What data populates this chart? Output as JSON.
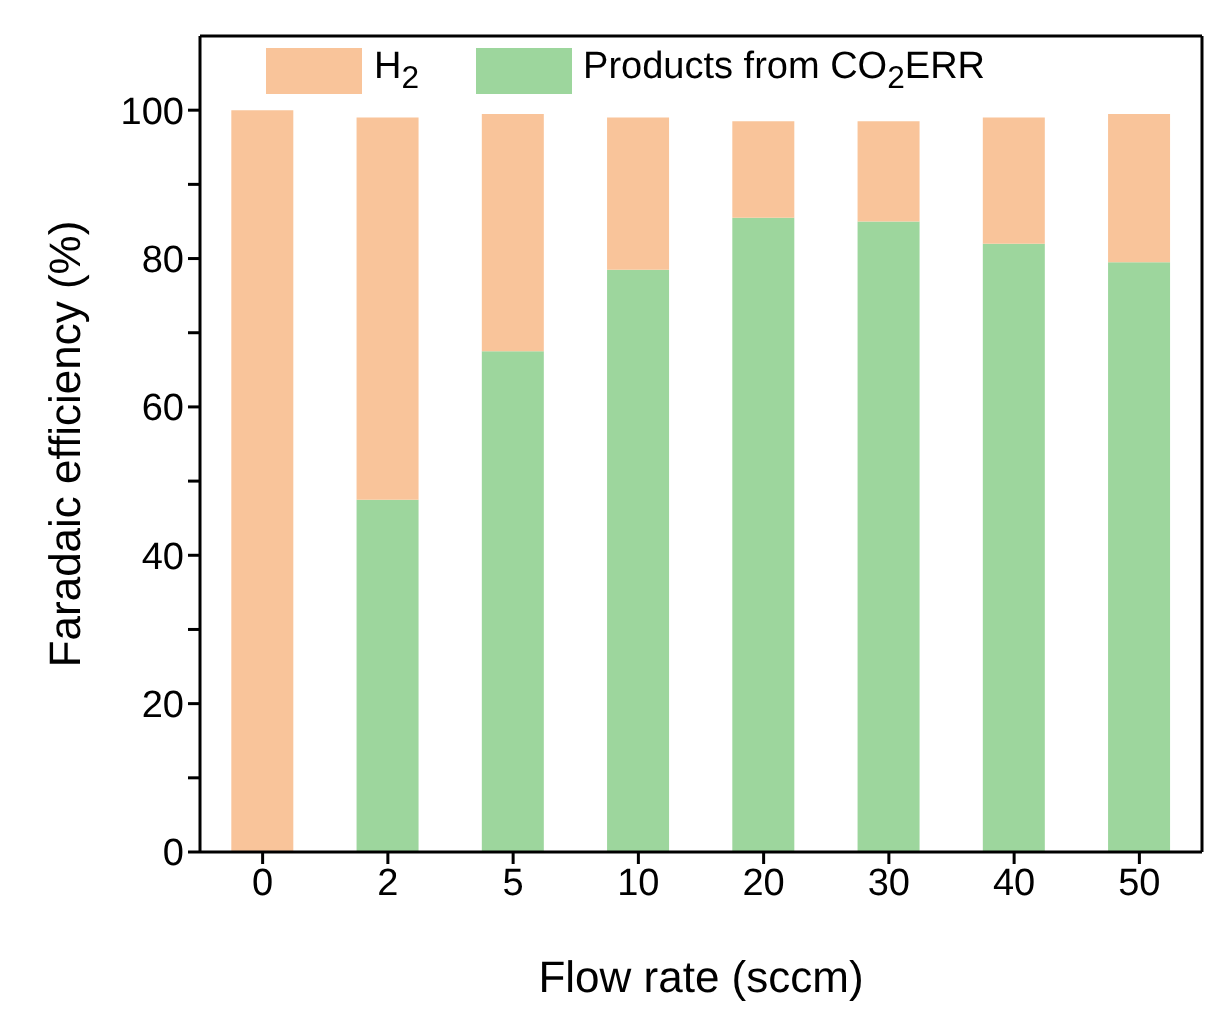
{
  "chart_data": {
    "type": "bar",
    "stacked": true,
    "xlabel": "Flow rate (sccm)",
    "ylabel": "Faradaic efficiency (%)",
    "categories": [
      "0",
      "2",
      "5",
      "10",
      "20",
      "30",
      "40",
      "50"
    ],
    "series": [
      {
        "name": "Products from CO$_{2}$ERR",
        "color": "#9dd69d",
        "values": [
          0,
          47.5,
          67.5,
          78.5,
          85.5,
          85,
          82,
          79.5
        ]
      },
      {
        "name": "H$_{2}$",
        "color": "#f9c49a",
        "values": [
          100,
          51.5,
          32,
          20.5,
          13,
          13.5,
          17,
          20
        ]
      }
    ],
    "ylim": [
      0,
      110
    ],
    "yticks": [
      0,
      {
        "value": 10,
        "label": null
      },
      20,
      {
        "value": 30,
        "label": null
      },
      40,
      {
        "value": 50,
        "label": null
      },
      60,
      {
        "value": 70,
        "label": null
      },
      80,
      {
        "value": 90,
        "label": null
      },
      100
    ],
    "grid": false,
    "legend": "top"
  }
}
